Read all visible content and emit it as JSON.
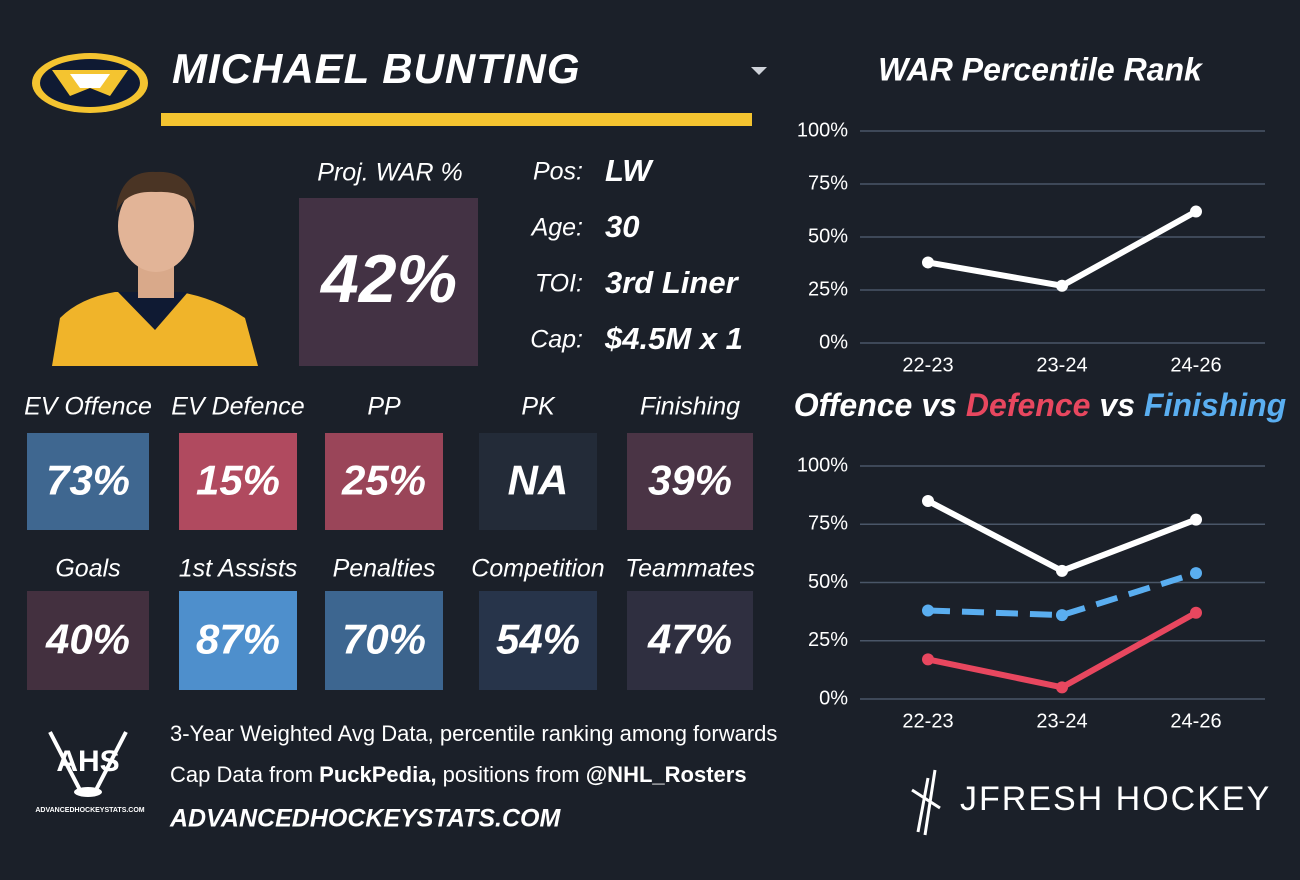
{
  "header": {
    "name": "MICHAEL BUNTING",
    "team_logo_color": "#f4c430"
  },
  "proj": {
    "label": "Proj. WAR %",
    "value": "42%",
    "color": "#433244"
  },
  "info": [
    {
      "label": "Pos:",
      "value": "LW"
    },
    {
      "label": "Age:",
      "value": "30"
    },
    {
      "label": "TOI:",
      "value": "3rd Liner"
    },
    {
      "label": "Cap:",
      "value": "$4.5M x 1"
    }
  ],
  "tiles": [
    {
      "label": "EV Offence",
      "value": "73%",
      "color": "#3f6790"
    },
    {
      "label": "EV Defence",
      "value": "15%",
      "color": "#b04a5f"
    },
    {
      "label": "PP",
      "value": "25%",
      "color": "#9a4559"
    },
    {
      "label": "PK",
      "value": "NA",
      "color": "#232b38"
    },
    {
      "label": "Finishing",
      "value": "39%",
      "color": "#4a3445"
    },
    {
      "label": "Goals",
      "value": "40%",
      "color": "#43303f"
    },
    {
      "label": "1st Assists",
      "value": "87%",
      "color": "#4e8fcc"
    },
    {
      "label": "Penalties",
      "value": "70%",
      "color": "#3d6690"
    },
    {
      "label": "Competition",
      "value": "54%",
      "color": "#27344a"
    },
    {
      "label": "Teammates",
      "value": "47%",
      "color": "#2f2f40"
    }
  ],
  "footer": {
    "line1": "3-Year Weighted Avg Data, percentile ranking among forwards",
    "line2": [
      "Cap Data from ",
      "PuckPedia,",
      " positions from ",
      "@NHL_Rosters"
    ],
    "site": "ADVANCEDHOCKEYSTATS.COM",
    "ahs_logo": "AHS",
    "ahs_logo_site": "ADVANCEDHOCKEYSTATS.COM",
    "brand": "JFRESH HOCKEY"
  },
  "chart_data": [
    {
      "type": "line",
      "title": "WAR Percentile Rank",
      "categories": [
        "22-23",
        "23-24",
        "24-26"
      ],
      "series": [
        {
          "name": "WAR",
          "color": "#ffffff",
          "values": [
            38,
            27,
            62
          ]
        }
      ],
      "ylim": [
        0,
        100
      ],
      "yticks": [
        {
          "value": 0,
          "label": "0%"
        },
        {
          "value": 25,
          "label": "25%"
        },
        {
          "value": 50,
          "label": "50%"
        },
        {
          "value": 75,
          "label": "75%"
        },
        {
          "value": 100,
          "label": "100%"
        }
      ],
      "grid": true
    },
    {
      "type": "line",
      "title_parts": [
        {
          "text": "Offence",
          "color": "#ffffff"
        },
        {
          "text": "vs",
          "color": "#ffffff"
        },
        {
          "text": "Defence",
          "color": "#e8475f"
        },
        {
          "text": "vs",
          "color": "#ffffff"
        },
        {
          "text": "Finishing",
          "color": "#5aaef0"
        }
      ],
      "categories": [
        "22-23",
        "23-24",
        "24-26"
      ],
      "series": [
        {
          "name": "Offence",
          "color": "#ffffff",
          "values": [
            85,
            55,
            77
          ]
        },
        {
          "name": "Defence",
          "color": "#e8475f",
          "values": [
            17,
            5,
            37
          ]
        },
        {
          "name": "Finishing",
          "color": "#5aaef0",
          "values": [
            38,
            36,
            54
          ],
          "dashed": true
        }
      ],
      "ylim": [
        0,
        100
      ],
      "yticks": [
        {
          "value": 0,
          "label": "0%"
        },
        {
          "value": 25,
          "label": "25%"
        },
        {
          "value": 50,
          "label": "50%"
        },
        {
          "value": 75,
          "label": "75%"
        },
        {
          "value": 100,
          "label": "100%"
        }
      ],
      "grid": true
    }
  ]
}
